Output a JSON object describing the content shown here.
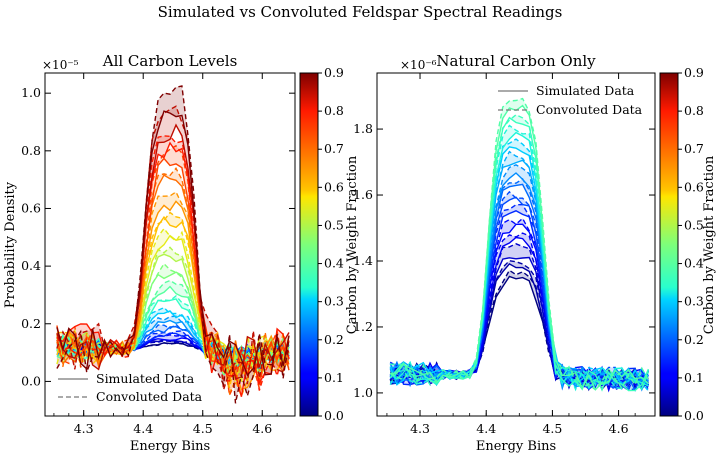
{
  "figure_title": "Simulated vs Convoluted Feldspar Spectral Readings",
  "chart_data": [
    {
      "type": "line",
      "title": "All Carbon Levels",
      "xlabel": "Energy Bins",
      "ylabel": "Probability Density",
      "y_multiplier": "×10⁻⁵",
      "xlim": [
        4.235,
        4.655
      ],
      "ylim": [
        -0.12,
        1.07
      ],
      "x_ticks": [
        4.3,
        4.4,
        4.5,
        4.6
      ],
      "x_tick_labels": [
        "4.3",
        "4.4",
        "4.5",
        "4.6"
      ],
      "y_ticks": [
        0.0,
        0.2,
        0.4,
        0.6,
        0.8,
        1.0
      ],
      "y_tick_labels": [
        "0.0",
        "0.2",
        "0.4",
        "0.6",
        "0.8",
        "1.0"
      ],
      "legend": {
        "position": "lower-left",
        "entries": [
          "Simulated Data",
          "Convoluted Data"
        ]
      },
      "colorbar": {
        "label": "Carbon by Weight Fraction",
        "range": [
          0.0,
          0.9
        ],
        "ticks": [
          "0.0",
          "0.1",
          "0.2",
          "0.3",
          "0.4",
          "0.5",
          "0.6",
          "0.7",
          "0.8",
          "0.9"
        ],
        "colormap": "jet"
      },
      "peak_x": 4.445,
      "series_carbon_fraction": [
        0.0,
        0.05,
        0.1,
        0.15,
        0.2,
        0.25,
        0.3,
        0.35,
        0.4,
        0.45,
        0.5,
        0.55,
        0.6,
        0.65,
        0.7,
        0.75,
        0.8,
        0.85,
        0.9
      ],
      "series_simulated_peak": [
        0.13,
        0.14,
        0.15,
        0.16,
        0.18,
        0.2,
        0.23,
        0.27,
        0.32,
        0.37,
        0.43,
        0.49,
        0.56,
        0.62,
        0.69,
        0.75,
        0.81,
        0.86,
        0.92
      ],
      "series_convoluted_peak": [
        0.13,
        0.14,
        0.155,
        0.17,
        0.19,
        0.215,
        0.245,
        0.285,
        0.335,
        0.39,
        0.45,
        0.51,
        0.58,
        0.65,
        0.72,
        0.79,
        0.86,
        0.94,
        1.02
      ],
      "baseline_left": 0.12,
      "baseline_right": 0.1
    },
    {
      "type": "line",
      "title": "Natural Carbon Only",
      "xlabel": "Energy Bins",
      "ylabel": "",
      "y_multiplier": "×10⁻⁶",
      "xlim": [
        4.235,
        4.655
      ],
      "ylim": [
        0.93,
        1.97
      ],
      "x_ticks": [
        4.3,
        4.4,
        4.5,
        4.6
      ],
      "x_tick_labels": [
        "4.3",
        "4.4",
        "4.5",
        "4.6"
      ],
      "y_ticks": [
        1.0,
        1.2,
        1.4,
        1.6,
        1.8
      ],
      "y_tick_labels": [
        "1.0",
        "1.2",
        "1.4",
        "1.6",
        "1.8"
      ],
      "legend": {
        "position": "upper-right",
        "entries": [
          "Simulated Data",
          "Convoluted Data"
        ]
      },
      "colorbar": {
        "label": "Carbon by Weight Fraction",
        "range": [
          0.0,
          0.9
        ],
        "ticks": [
          "0.0",
          "0.1",
          "0.2",
          "0.3",
          "0.4",
          "0.5",
          "0.6",
          "0.7",
          "0.8",
          "0.9"
        ],
        "colormap": "jet"
      },
      "peak_x": 4.445,
      "series_carbon_fraction": [
        0.0,
        0.03,
        0.06,
        0.09,
        0.12,
        0.15,
        0.18,
        0.21,
        0.24,
        0.27,
        0.3,
        0.33,
        0.36,
        0.39
      ],
      "series_simulated_peak": [
        1.34,
        1.38,
        1.42,
        1.46,
        1.5,
        1.54,
        1.58,
        1.62,
        1.66,
        1.7,
        1.74,
        1.78,
        1.83,
        1.87
      ],
      "series_convoluted_peak": [
        1.36,
        1.4,
        1.44,
        1.48,
        1.52,
        1.56,
        1.6,
        1.64,
        1.68,
        1.72,
        1.76,
        1.8,
        1.84,
        1.89
      ],
      "baseline_left": 1.06,
      "baseline_right": 1.04
    }
  ]
}
